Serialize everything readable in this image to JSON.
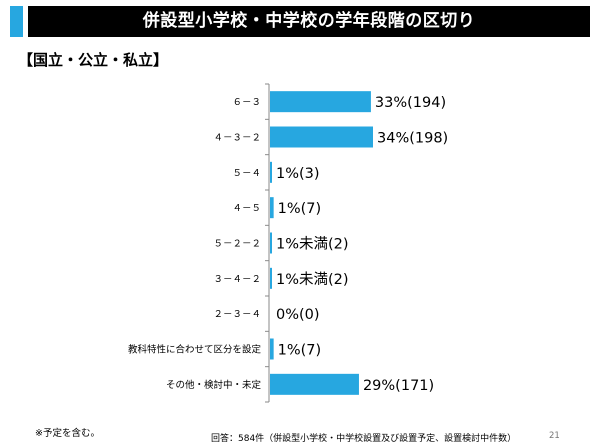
{
  "slide": {
    "title": "併設型小学校・中学校の学年段階の区切り",
    "subtitle": "【国立・公立・私立】",
    "footnote": "※予定を含む。",
    "source": "回答：584件（併設型小学校・中学校設置及び設置予定、設置検討中件数）",
    "page_number": "21"
  },
  "colors": {
    "bar": "#27a7e0",
    "title_bg": "#000000",
    "accent": "#27a7e0"
  },
  "chart_data": {
    "type": "bar",
    "orientation": "horizontal",
    "categories": [
      "６－３",
      "４－３－２",
      "５－４",
      "４－５",
      "５－２－２",
      "３－４－２",
      "２－３－４",
      "教科特性に合わせて区分を設定",
      "その他・検討中・未定"
    ],
    "values": [
      194,
      198,
      3,
      7,
      2,
      2,
      0,
      7,
      171
    ],
    "value_labels": [
      "33%(194)",
      "34%(198)",
      "1%(3)",
      "1%(7)",
      "1%未満(2)",
      "1%未満(2)",
      "0%(0)",
      "1%(7)",
      "29%(171)"
    ],
    "xlim": [
      0,
      198
    ],
    "grid": false,
    "legend": "none"
  }
}
